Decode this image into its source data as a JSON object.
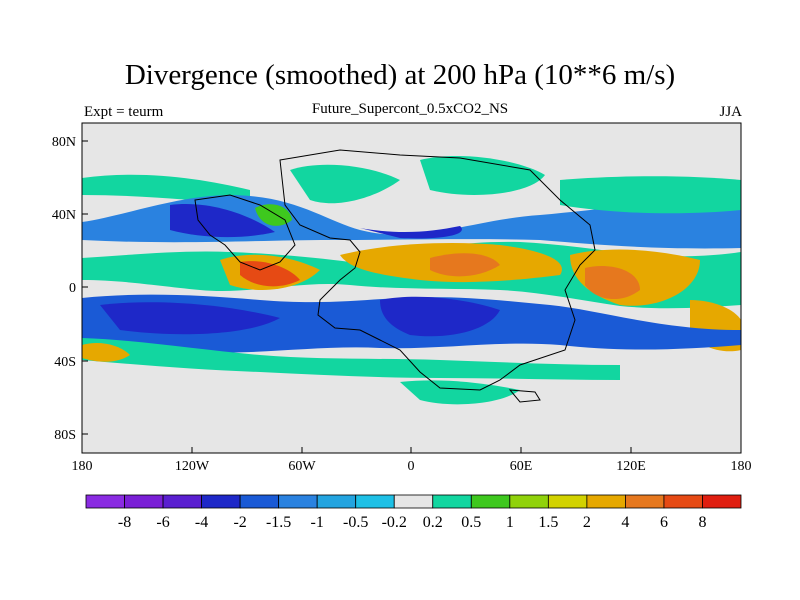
{
  "title": "Divergence (smoothed) at 200 hPa (10**6 m/s)",
  "subtitle": "Future_Supercont_0.5xCO2_NS",
  "left_label": "Expt = teurm",
  "right_label": "JJA",
  "map": {
    "lon_ticks": [
      "180",
      "120W",
      "60W",
      "0",
      "60E",
      "120E",
      "180"
    ],
    "lat_ticks": [
      "80N",
      "40N",
      "0",
      "40S",
      "80S"
    ],
    "background_color": "#e6e6e6"
  },
  "colorbar": {
    "colors": [
      "#8a2be2",
      "#7a1fd6",
      "#5a1fd0",
      "#1e28c8",
      "#1a5ad6",
      "#2a82e0",
      "#23a4e0",
      "#1ec0e6",
      "#e6e6e6",
      "#12d6a0",
      "#3ec81e",
      "#90d20a",
      "#d2d200",
      "#e6a800",
      "#e6781e",
      "#e64a14",
      "#e01e10"
    ],
    "labels": [
      "-8",
      "-6",
      "-4",
      "-2",
      "-1.5",
      "-1",
      "-0.5",
      "-0.2",
      "0.2",
      "0.5",
      "1",
      "1.5",
      "2",
      "4",
      "6",
      "8"
    ]
  }
}
